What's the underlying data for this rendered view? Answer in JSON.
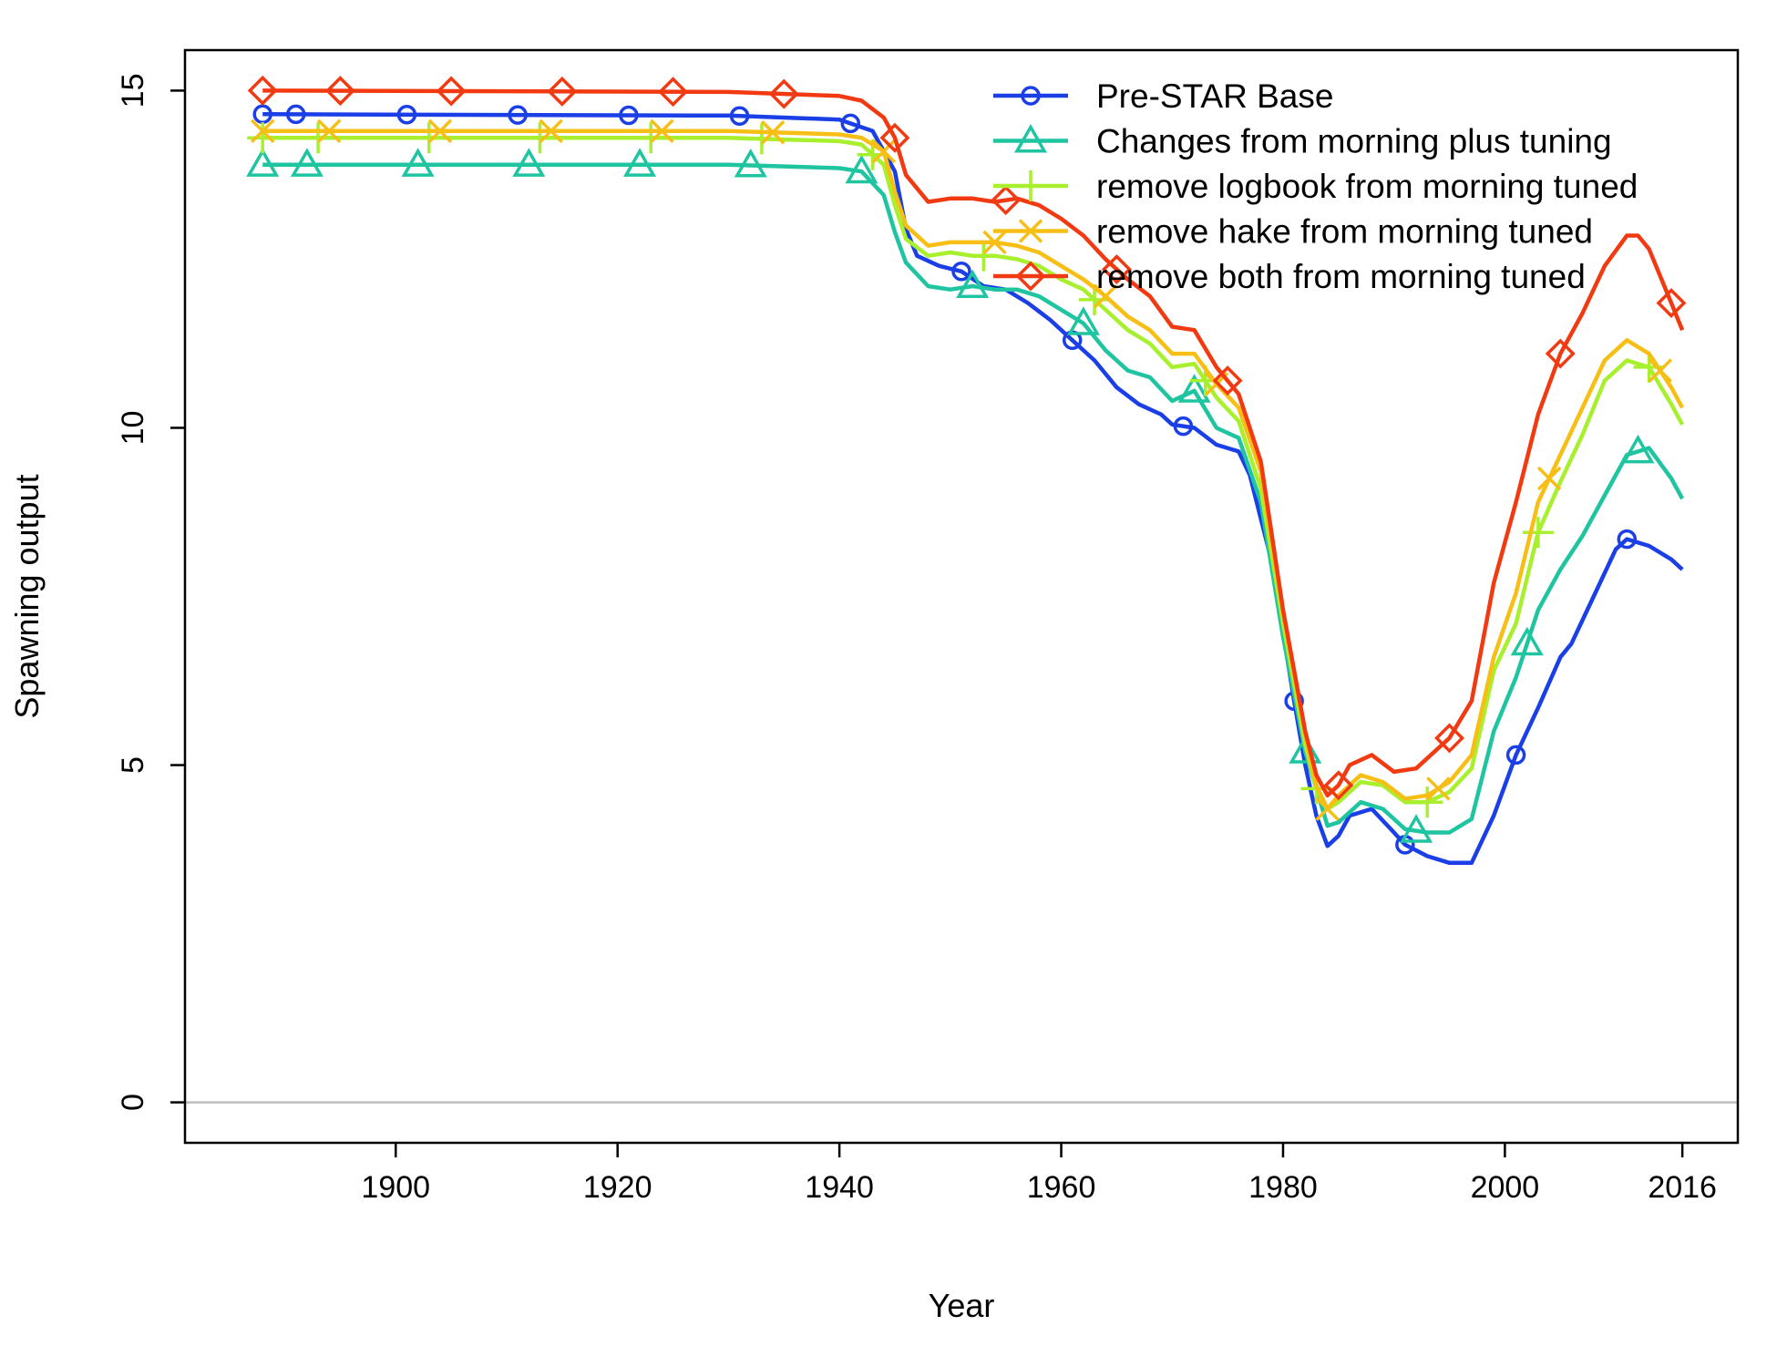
{
  "chart_data": {
    "type": "line",
    "title": "",
    "xlabel": "Year",
    "ylabel": "Spawning output",
    "xlim": [
      1881,
      2021
    ],
    "ylim": [
      -0.6,
      15.6
    ],
    "x_ticks": [
      1900,
      1920,
      1940,
      1960,
      1980,
      2000,
      2016
    ],
    "y_ticks": [
      0,
      5,
      10,
      15
    ],
    "reference_line": 0,
    "grid": false,
    "legend_position": "top-right",
    "series": [
      {
        "name": "Pre-STAR Base",
        "color": "#1a3fe6",
        "marker": "circle",
        "points": [
          [
            1888,
            14.65
          ],
          [
            1930,
            14.63
          ],
          [
            1940,
            14.57
          ],
          [
            1943,
            14.4
          ],
          [
            1945,
            13.8
          ],
          [
            1946,
            12.95
          ],
          [
            1947,
            12.55
          ],
          [
            1949,
            12.4
          ],
          [
            1951,
            12.32
          ],
          [
            1953,
            12.1
          ],
          [
            1955,
            12.05
          ],
          [
            1957,
            11.85
          ],
          [
            1959,
            11.6
          ],
          [
            1961,
            11.3
          ],
          [
            1963,
            11.0
          ],
          [
            1965,
            10.6
          ],
          [
            1967,
            10.35
          ],
          [
            1969,
            10.2
          ],
          [
            1970,
            10.05
          ],
          [
            1972,
            10.0
          ],
          [
            1974,
            9.75
          ],
          [
            1976,
            9.65
          ],
          [
            1977,
            9.3
          ],
          [
            1979,
            8.0
          ],
          [
            1981,
            5.95
          ],
          [
            1982,
            5.0
          ],
          [
            1983,
            4.25
          ],
          [
            1984,
            3.8
          ],
          [
            1985,
            3.95
          ],
          [
            1986,
            4.25
          ],
          [
            1988,
            4.35
          ],
          [
            1990,
            4.0
          ],
          [
            1991,
            3.82
          ],
          [
            1993,
            3.65
          ],
          [
            1995,
            3.55
          ],
          [
            1997,
            3.55
          ],
          [
            1999,
            4.25
          ],
          [
            2001,
            5.15
          ],
          [
            2003,
            5.85
          ],
          [
            2005,
            6.6
          ],
          [
            2006,
            6.8
          ],
          [
            2008,
            7.5
          ],
          [
            2010,
            8.2
          ],
          [
            2011,
            8.35
          ],
          [
            2013,
            8.25
          ],
          [
            2015,
            8.05
          ],
          [
            2016,
            7.9
          ]
        ]
      },
      {
        "name": "Changes from morning plus tuning",
        "color": "#1fc4a0",
        "marker": "triangle",
        "points": [
          [
            1888,
            13.9
          ],
          [
            1930,
            13.9
          ],
          [
            1940,
            13.85
          ],
          [
            1942,
            13.8
          ],
          [
            1944,
            13.45
          ],
          [
            1945,
            12.9
          ],
          [
            1946,
            12.45
          ],
          [
            1948,
            12.1
          ],
          [
            1950,
            12.05
          ],
          [
            1952,
            12.1
          ],
          [
            1954,
            12.05
          ],
          [
            1956,
            12.05
          ],
          [
            1958,
            11.95
          ],
          [
            1960,
            11.75
          ],
          [
            1962,
            11.55
          ],
          [
            1964,
            11.15
          ],
          [
            1966,
            10.85
          ],
          [
            1968,
            10.75
          ],
          [
            1970,
            10.4
          ],
          [
            1972,
            10.55
          ],
          [
            1974,
            10.0
          ],
          [
            1976,
            9.85
          ],
          [
            1978,
            8.9
          ],
          [
            1980,
            6.9
          ],
          [
            1982,
            5.2
          ],
          [
            1984,
            4.1
          ],
          [
            1985,
            4.15
          ],
          [
            1987,
            4.45
          ],
          [
            1989,
            4.35
          ],
          [
            1991,
            4.05
          ],
          [
            1993,
            4.0
          ],
          [
            1995,
            4.0
          ],
          [
            1997,
            4.2
          ],
          [
            1999,
            5.5
          ],
          [
            2001,
            6.3
          ],
          [
            2003,
            7.3
          ],
          [
            2005,
            7.9
          ],
          [
            2007,
            8.4
          ],
          [
            2009,
            9.0
          ],
          [
            2011,
            9.6
          ],
          [
            2013,
            9.7
          ],
          [
            2015,
            9.25
          ],
          [
            2016,
            8.95
          ]
        ]
      },
      {
        "name": "remove logbook from morning tuned",
        "color": "#a8f02e",
        "marker": "plus",
        "points": [
          [
            1888,
            14.3
          ],
          [
            1930,
            14.3
          ],
          [
            1940,
            14.25
          ],
          [
            1942,
            14.2
          ],
          [
            1944,
            13.9
          ],
          [
            1945,
            13.3
          ],
          [
            1946,
            12.8
          ],
          [
            1948,
            12.55
          ],
          [
            1950,
            12.6
          ],
          [
            1952,
            12.55
          ],
          [
            1954,
            12.55
          ],
          [
            1956,
            12.5
          ],
          [
            1958,
            12.4
          ],
          [
            1960,
            12.2
          ],
          [
            1962,
            12.05
          ],
          [
            1964,
            11.75
          ],
          [
            1966,
            11.45
          ],
          [
            1968,
            11.25
          ],
          [
            1970,
            10.9
          ],
          [
            1972,
            10.95
          ],
          [
            1974,
            10.45
          ],
          [
            1976,
            10.1
          ],
          [
            1978,
            9.1
          ],
          [
            1980,
            7.1
          ],
          [
            1982,
            5.3
          ],
          [
            1983,
            4.65
          ],
          [
            1984,
            4.35
          ],
          [
            1985,
            4.45
          ],
          [
            1987,
            4.75
          ],
          [
            1989,
            4.7
          ],
          [
            1991,
            4.45
          ],
          [
            1993,
            4.45
          ],
          [
            1995,
            4.6
          ],
          [
            1997,
            4.95
          ],
          [
            1999,
            6.4
          ],
          [
            2001,
            7.1
          ],
          [
            2003,
            8.45
          ],
          [
            2005,
            9.2
          ],
          [
            2007,
            9.9
          ],
          [
            2009,
            10.7
          ],
          [
            2011,
            11.0
          ],
          [
            2013,
            10.9
          ],
          [
            2015,
            10.35
          ],
          [
            2016,
            10.05
          ]
        ]
      },
      {
        "name": "remove hake from morning tuned",
        "color": "#f7bf16",
        "marker": "cross",
        "points": [
          [
            1888,
            14.4
          ],
          [
            1930,
            14.4
          ],
          [
            1940,
            14.35
          ],
          [
            1942,
            14.3
          ],
          [
            1944,
            14.1
          ],
          [
            1945,
            13.5
          ],
          [
            1946,
            13.0
          ],
          [
            1948,
            12.7
          ],
          [
            1950,
            12.75
          ],
          [
            1952,
            12.75
          ],
          [
            1954,
            12.75
          ],
          [
            1956,
            12.7
          ],
          [
            1958,
            12.6
          ],
          [
            1960,
            12.4
          ],
          [
            1962,
            12.2
          ],
          [
            1964,
            11.95
          ],
          [
            1966,
            11.65
          ],
          [
            1968,
            11.45
          ],
          [
            1970,
            11.1
          ],
          [
            1972,
            11.1
          ],
          [
            1974,
            10.65
          ],
          [
            1976,
            10.3
          ],
          [
            1978,
            9.35
          ],
          [
            1980,
            7.25
          ],
          [
            1982,
            5.45
          ],
          [
            1983,
            4.7
          ],
          [
            1984,
            4.35
          ],
          [
            1985,
            4.55
          ],
          [
            1987,
            4.85
          ],
          [
            1989,
            4.75
          ],
          [
            1991,
            4.5
          ],
          [
            1993,
            4.55
          ],
          [
            1995,
            4.75
          ],
          [
            1997,
            5.15
          ],
          [
            1999,
            6.6
          ],
          [
            2001,
            7.55
          ],
          [
            2003,
            8.9
          ],
          [
            2005,
            9.6
          ],
          [
            2007,
            10.3
          ],
          [
            2009,
            11.0
          ],
          [
            2011,
            11.3
          ],
          [
            2013,
            11.1
          ],
          [
            2015,
            10.6
          ],
          [
            2016,
            10.3
          ]
        ]
      },
      {
        "name": "remove both from morning tuned",
        "color": "#f23a12",
        "marker": "diamond",
        "points": [
          [
            1888,
            15.0
          ],
          [
            1930,
            14.98
          ],
          [
            1940,
            14.92
          ],
          [
            1942,
            14.85
          ],
          [
            1944,
            14.6
          ],
          [
            1945,
            14.3
          ],
          [
            1946,
            13.75
          ],
          [
            1948,
            13.35
          ],
          [
            1950,
            13.4
          ],
          [
            1952,
            13.4
          ],
          [
            1954,
            13.35
          ],
          [
            1956,
            13.4
          ],
          [
            1958,
            13.3
          ],
          [
            1960,
            13.1
          ],
          [
            1962,
            12.85
          ],
          [
            1964,
            12.5
          ],
          [
            1966,
            12.2
          ],
          [
            1968,
            11.95
          ],
          [
            1970,
            11.5
          ],
          [
            1972,
            11.45
          ],
          [
            1974,
            10.9
          ],
          [
            1976,
            10.5
          ],
          [
            1978,
            9.5
          ],
          [
            1980,
            7.3
          ],
          [
            1982,
            5.5
          ],
          [
            1983,
            4.85
          ],
          [
            1984,
            4.55
          ],
          [
            1985,
            4.7
          ],
          [
            1986,
            5.0
          ],
          [
            1988,
            5.15
          ],
          [
            1990,
            4.9
          ],
          [
            1992,
            4.95
          ],
          [
            1995,
            5.4
          ],
          [
            1997,
            5.95
          ],
          [
            1999,
            7.7
          ],
          [
            2001,
            8.9
          ],
          [
            2003,
            10.2
          ],
          [
            2005,
            11.1
          ],
          [
            2007,
            11.7
          ],
          [
            2009,
            12.4
          ],
          [
            2011,
            12.85
          ],
          [
            2012,
            12.85
          ],
          [
            2013,
            12.65
          ],
          [
            2015,
            11.85
          ],
          [
            2016,
            11.45
          ]
        ]
      }
    ],
    "markers": {
      "Pre-STAR Base": [
        1888,
        1891,
        1901,
        1911,
        1921,
        1931,
        1941,
        1951,
        1961,
        1971,
        1981,
        1991,
        2001,
        2011
      ],
      "Changes from morning plus tuning": [
        1888,
        1892,
        1902,
        1912,
        1922,
        1932,
        1942,
        1952,
        1962,
        1972,
        1982,
        1992,
        2002,
        2012
      ],
      "remove logbook from morning tuned": [
        1888,
        1893,
        1903,
        1913,
        1923,
        1933,
        1943,
        1953,
        1963,
        1973,
        1983,
        1993,
        2003,
        2013
      ],
      "remove hake from morning tuned": [
        1888,
        1894,
        1904,
        1914,
        1924,
        1934,
        1944,
        1954,
        1964,
        1974,
        1984,
        1994,
        2004,
        2014
      ],
      "remove both from morning tuned": [
        1888,
        1895,
        1905,
        1915,
        1925,
        1935,
        1945,
        1955,
        1965,
        1975,
        1985,
        1995,
        2005,
        2015
      ]
    }
  }
}
